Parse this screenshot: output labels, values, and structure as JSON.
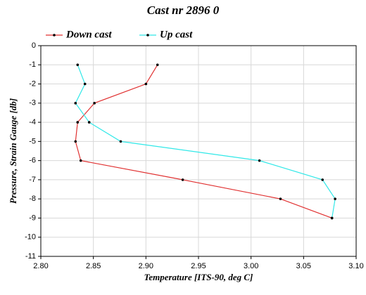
{
  "chart_data": {
    "type": "line",
    "title": "Cast nr 2896 0",
    "xlabel": "Temperature [ITS-90, deg C]",
    "ylabel": "Pressure, Strain Gauge [db]",
    "series": [
      {
        "name": "Down cast",
        "color": "#e03030",
        "x": [
          2.911,
          2.9,
          2.851,
          2.835,
          2.833,
          2.838,
          2.935,
          3.028,
          3.077
        ],
        "values": [
          -1,
          -2,
          -3,
          -4,
          -5,
          -6,
          -7,
          -8,
          -9
        ]
      },
      {
        "name": "Up cast",
        "color": "#30e8e8",
        "x": [
          2.835,
          2.842,
          2.833,
          2.846,
          2.876,
          3.008,
          3.068,
          3.08,
          3.077
        ],
        "values": [
          -1,
          -2,
          -3,
          -4,
          -5,
          -6,
          -7,
          -8,
          -9
        ]
      }
    ],
    "xlim": [
      2.8,
      3.1
    ],
    "xticks": [
      {
        "value": 2.8,
        "label": "2.80"
      },
      2.85,
      {
        "value": 2.9,
        "label": "2.90"
      },
      2.95,
      {
        "value": 3.0,
        "label": "3.00"
      },
      3.05,
      {
        "value": 3.1,
        "label": "3.10"
      }
    ],
    "ylim": [
      -11,
      0
    ],
    "yticks": [
      0,
      -1,
      -2,
      -3,
      -4,
      -5,
      -6,
      -7,
      -8,
      -9,
      -10,
      -11
    ],
    "grid": true
  }
}
